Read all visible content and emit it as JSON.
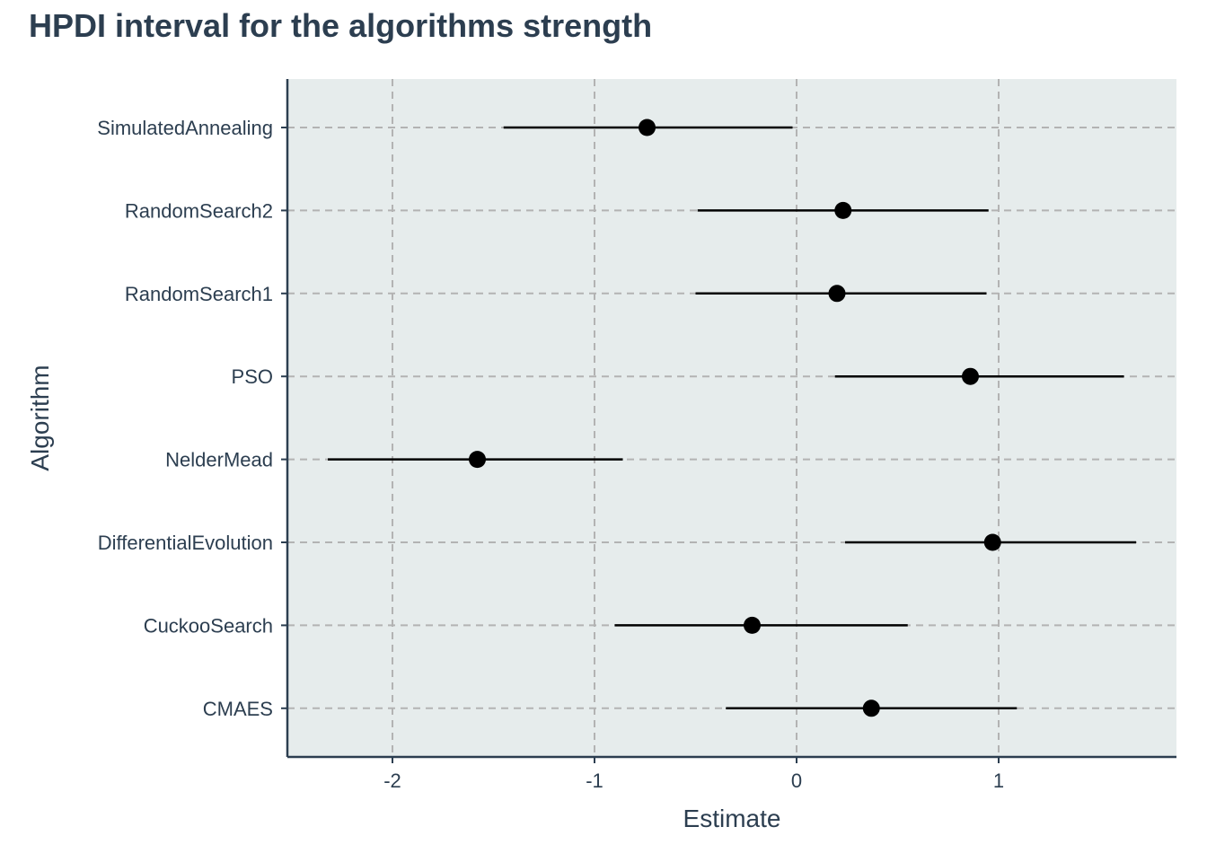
{
  "chart_data": {
    "type": "scatter",
    "title": "HPDI interval for the algorithms strength",
    "xlabel": "Estimate",
    "ylabel": "Algorithm",
    "xlim": [
      -2.52,
      1.88
    ],
    "xticks": [
      -2,
      -1,
      0,
      1
    ],
    "xtick_labels": [
      "-2",
      "-1",
      "0",
      "1"
    ],
    "grid": "dashed",
    "categories": [
      "SimulatedAnnealing",
      "RandomSearch2",
      "RandomSearch1",
      "PSO",
      "NelderMead",
      "DifferentialEvolution",
      "CuckooSearch",
      "CMAES"
    ],
    "estimates": [
      -0.74,
      0.23,
      0.2,
      0.86,
      -1.58,
      0.97,
      -0.22,
      0.37
    ],
    "lower": [
      -1.45,
      -0.49,
      -0.5,
      0.19,
      -2.32,
      0.24,
      -0.9,
      -0.35
    ],
    "upper": [
      -0.02,
      0.95,
      0.94,
      1.62,
      -0.86,
      1.68,
      0.55,
      1.09
    ],
    "colors": {
      "panel_background": "#e6ecec",
      "grid": "#b3b3b3",
      "axis": "#2c3e50",
      "text": "#2c3e50",
      "marker": "#000000"
    }
  }
}
